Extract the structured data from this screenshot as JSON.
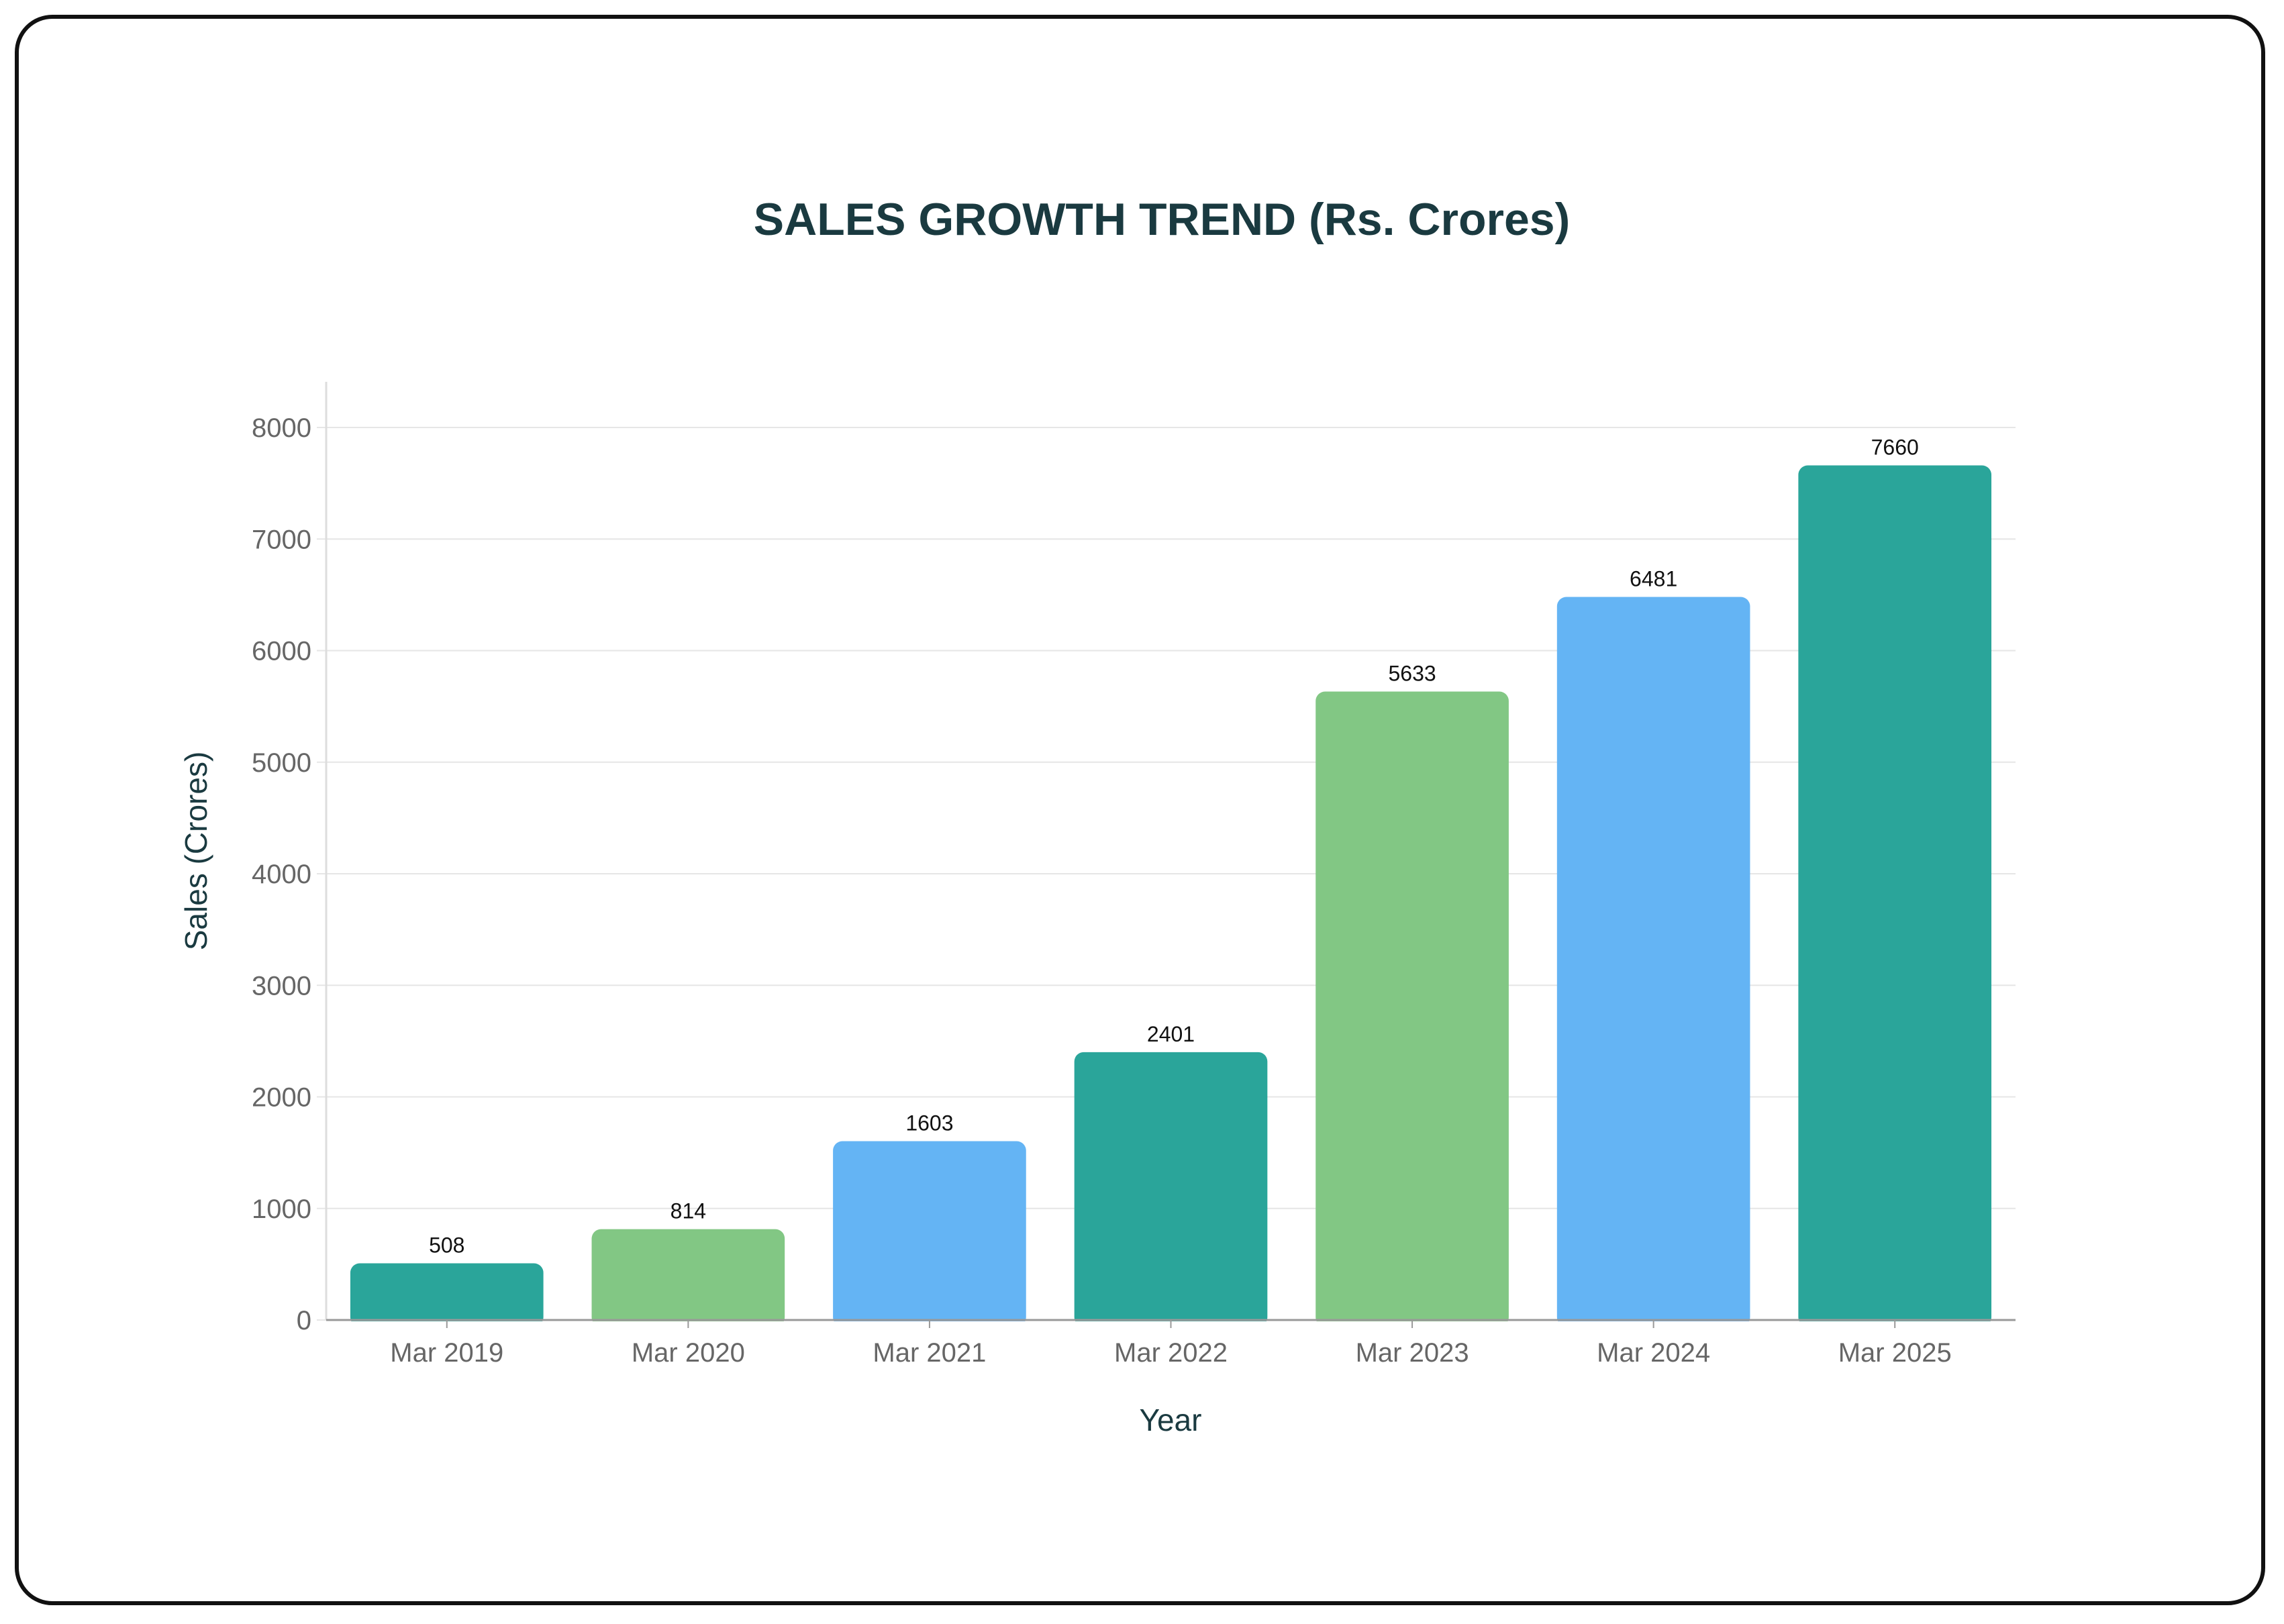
{
  "chart_data": {
    "type": "bar",
    "title": "SALES GROWTH TREND (Rs. Crores)",
    "xlabel": "Year",
    "ylabel": "Sales (Crores)",
    "categories": [
      "Mar 2019",
      "Mar 2020",
      "Mar 2021",
      "Mar 2022",
      "Mar 2023",
      "Mar 2024",
      "Mar 2025"
    ],
    "values": [
      508,
      814,
      1603,
      2401,
      5633,
      6481,
      7660
    ],
    "data_labels": [
      "508",
      "814",
      "1603",
      "2401",
      "5633",
      "6481",
      "7660"
    ],
    "bar_colors": [
      "#2aa59a",
      "#82c784",
      "#64b4f4",
      "#2aa59a",
      "#82c784",
      "#64b4f4",
      "#2aa59a"
    ],
    "ylim": [
      0,
      8000
    ],
    "yticks": [
      0,
      1000,
      2000,
      3000,
      4000,
      5000,
      6000,
      7000,
      8000
    ],
    "ytick_labels": [
      "0",
      "1000",
      "2000",
      "3000",
      "4000",
      "5000",
      "6000",
      "7000",
      "8000"
    ],
    "grid": true,
    "legend": "none",
    "colors": {
      "title": "#1a3a40",
      "axis_label": "#1a3a40",
      "tick_label": "#666666",
      "data_label": "#111111",
      "gridline": "#e6e6e6",
      "axis_line": "#999999"
    }
  }
}
